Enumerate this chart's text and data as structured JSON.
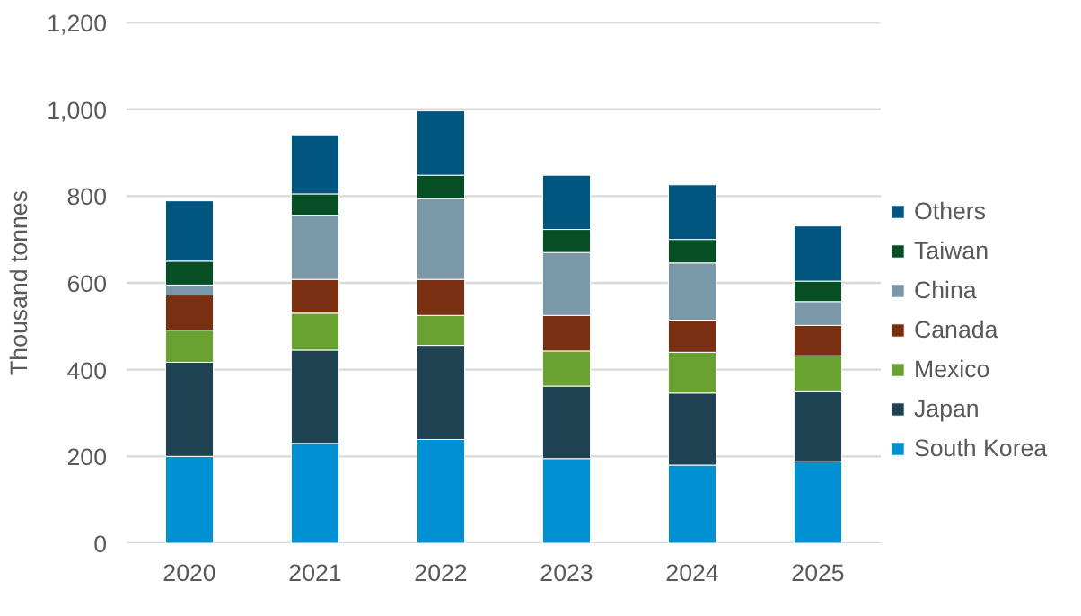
{
  "chart_data": {
    "type": "bar",
    "stacked": true,
    "ylabel": "Thousand tonnes",
    "categories": [
      "2020",
      "2021",
      "2022",
      "2023",
      "2024",
      "2025"
    ],
    "series": [
      {
        "name": "South Korea",
        "color": "#0091d5",
        "values": [
          200,
          230,
          239,
          195,
          180,
          188
        ]
      },
      {
        "name": "Japan",
        "color": "#1f4352",
        "values": [
          217,
          215,
          217,
          167,
          166,
          163
        ]
      },
      {
        "name": "Mexico",
        "color": "#6aa231",
        "values": [
          74,
          85,
          69,
          81,
          94,
          81
        ]
      },
      {
        "name": "Canada",
        "color": "#7b2f11",
        "values": [
          81,
          78,
          83,
          82,
          74,
          70
        ]
      },
      {
        "name": "China",
        "color": "#7b98a8",
        "values": [
          23,
          148,
          186,
          145,
          132,
          55
        ]
      },
      {
        "name": "Taiwan",
        "color": "#064f25",
        "values": [
          55,
          49,
          54,
          53,
          54,
          47
        ]
      },
      {
        "name": "Others",
        "color": "#00567f",
        "values": [
          139,
          136,
          148,
          125,
          126,
          127
        ]
      }
    ],
    "ylim": [
      0,
      1200
    ],
    "yticks": [
      0,
      200,
      400,
      600,
      800,
      {
        "value": 1000,
        "label": "1,000"
      },
      {
        "value": 1200,
        "label": "1,200"
      }
    ],
    "grid": "y",
    "legend": "right"
  }
}
